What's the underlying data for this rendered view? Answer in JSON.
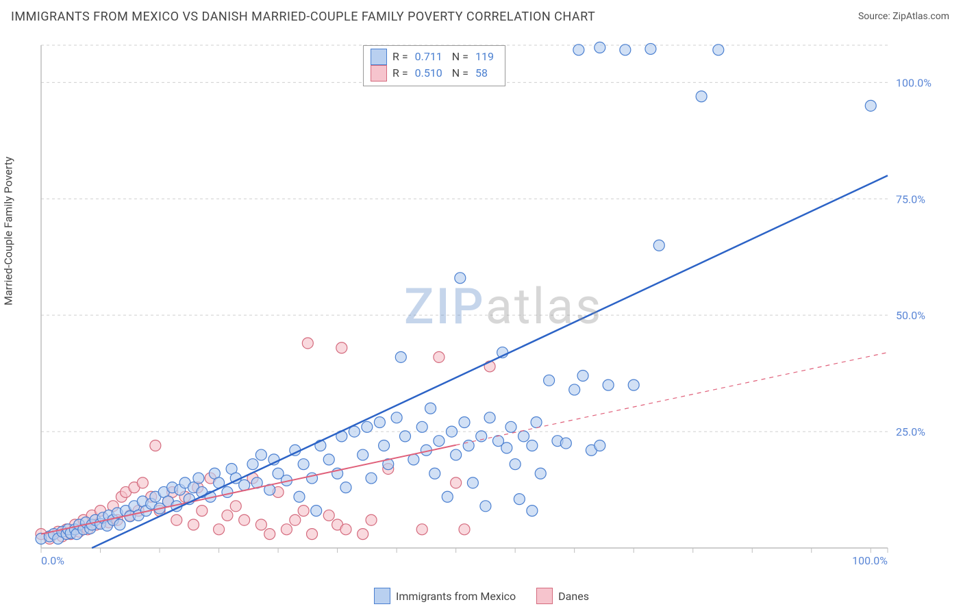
{
  "title": "IMMIGRANTS FROM MEXICO VS DANISH MARRIED-COUPLE FAMILY POVERTY CORRELATION CHART",
  "source_label": "Source:",
  "source_value": "ZipAtlas.com",
  "watermark_z": "ZIP",
  "watermark_rest": "atlas",
  "ylabel": "Married-Couple Family Poverty",
  "chart": {
    "type": "scatter",
    "xlim": [
      0,
      100
    ],
    "ylim": [
      0,
      108
    ],
    "xtick_labels": {
      "0": "0.0%",
      "100": "100.0%"
    },
    "ytick_labels": {
      "25": "25.0%",
      "50": "50.0%",
      "75": "75.0%",
      "100": "100.0%"
    },
    "grid_y": [
      25,
      50,
      75,
      100
    ],
    "x_ticks": [
      0,
      7,
      14,
      21,
      28,
      35,
      42,
      49,
      56,
      63,
      70,
      77,
      84,
      91,
      98,
      100
    ],
    "background_color": "#ffffff",
    "grid_color": "#cfcfcf",
    "axis_color": "#bdbdbd",
    "marker_radius": 8,
    "series": {
      "blue": {
        "label": "Immigrants from Mexico",
        "R": "0.711",
        "N": "119",
        "fill": "#b9d0f0",
        "stroke": "#4a7fd0",
        "fill_opacity": 0.65,
        "line_color": "#2c63c6",
        "line_width": 2.5,
        "line_dash": "none",
        "trend": {
          "x1": 6,
          "y1": 0,
          "x2": 100,
          "y2": 80
        },
        "points": [
          [
            0,
            2
          ],
          [
            1,
            2.5
          ],
          [
            1.5,
            3
          ],
          [
            2,
            2
          ],
          [
            2.5,
            3.5
          ],
          [
            3,
            3
          ],
          [
            3.2,
            4
          ],
          [
            3.5,
            3.2
          ],
          [
            4,
            4
          ],
          [
            4.2,
            3
          ],
          [
            4.5,
            5
          ],
          [
            5,
            4
          ],
          [
            5.3,
            5.5
          ],
          [
            5.8,
            4.2
          ],
          [
            6,
            5
          ],
          [
            6.4,
            6
          ],
          [
            7,
            5.2
          ],
          [
            7.3,
            6.5
          ],
          [
            7.8,
            4.8
          ],
          [
            8,
            7
          ],
          [
            8.5,
            6
          ],
          [
            9,
            7.5
          ],
          [
            9.3,
            5
          ],
          [
            10,
            8
          ],
          [
            10.5,
            6.8
          ],
          [
            11,
            9
          ],
          [
            11.5,
            7
          ],
          [
            12,
            10
          ],
          [
            12.4,
            8
          ],
          [
            13,
            9.5
          ],
          [
            13.5,
            11
          ],
          [
            14,
            8.5
          ],
          [
            14.5,
            12
          ],
          [
            15,
            10
          ],
          [
            15.5,
            13
          ],
          [
            16,
            9
          ],
          [
            16.4,
            12.5
          ],
          [
            17,
            14
          ],
          [
            17.5,
            10.5
          ],
          [
            18,
            13
          ],
          [
            18.6,
            15
          ],
          [
            19,
            12
          ],
          [
            20,
            11
          ],
          [
            20.5,
            16
          ],
          [
            21,
            14
          ],
          [
            22,
            12
          ],
          [
            22.5,
            17
          ],
          [
            23,
            15
          ],
          [
            24,
            13.5
          ],
          [
            25,
            18
          ],
          [
            25.5,
            14
          ],
          [
            26,
            20
          ],
          [
            27,
            12.5
          ],
          [
            27.5,
            19
          ],
          [
            28,
            16
          ],
          [
            29,
            14.5
          ],
          [
            30,
            21
          ],
          [
            30.5,
            11
          ],
          [
            31,
            18
          ],
          [
            32,
            15
          ],
          [
            32.5,
            8
          ],
          [
            33,
            22
          ],
          [
            34,
            19
          ],
          [
            35,
            16
          ],
          [
            35.5,
            24
          ],
          [
            36,
            13
          ],
          [
            37,
            25
          ],
          [
            38,
            20
          ],
          [
            38.5,
            26
          ],
          [
            39,
            15
          ],
          [
            40,
            27
          ],
          [
            40.5,
            22
          ],
          [
            41,
            18
          ],
          [
            42,
            28
          ],
          [
            42.5,
            41
          ],
          [
            43,
            24
          ],
          [
            44,
            19
          ],
          [
            45,
            26
          ],
          [
            45.5,
            21
          ],
          [
            46,
            30
          ],
          [
            46.5,
            16
          ],
          [
            47,
            23
          ],
          [
            48,
            11
          ],
          [
            48.5,
            25
          ],
          [
            49,
            20
          ],
          [
            49.5,
            58
          ],
          [
            50,
            27
          ],
          [
            50.5,
            22
          ],
          [
            51,
            14
          ],
          [
            52,
            24
          ],
          [
            52.5,
            9
          ],
          [
            53,
            28
          ],
          [
            54,
            23
          ],
          [
            54.5,
            42
          ],
          [
            55,
            21.5
          ],
          [
            55.5,
            26
          ],
          [
            56,
            18
          ],
          [
            56.5,
            10.5
          ],
          [
            57,
            24
          ],
          [
            58,
            22
          ],
          [
            58.5,
            27
          ],
          [
            59,
            16
          ],
          [
            60,
            36
          ],
          [
            61,
            23
          ],
          [
            62,
            22.5
          ],
          [
            63,
            34
          ],
          [
            64,
            37
          ],
          [
            65,
            21
          ],
          [
            66,
            22
          ],
          [
            67,
            35
          ],
          [
            70,
            35
          ],
          [
            73,
            65
          ],
          [
            78,
            97
          ],
          [
            63.5,
            107
          ],
          [
            66,
            107.5
          ],
          [
            69,
            107
          ],
          [
            80,
            107
          ],
          [
            72,
            107.2
          ],
          [
            98,
            95
          ],
          [
            58,
            8
          ]
        ]
      },
      "pink": {
        "label": "Danes",
        "R": "0.510",
        "N": "58",
        "fill": "#f6c4cd",
        "stroke": "#d46a7d",
        "fill_opacity": 0.65,
        "line_color": "#e0607a",
        "line_width": 2,
        "line_dash": "6 6",
        "trend_solid_end": 49,
        "trend": {
          "x1": 0,
          "y1": 3,
          "x2": 100,
          "y2": 42
        },
        "points": [
          [
            0,
            3
          ],
          [
            1,
            2
          ],
          [
            2,
            3.5
          ],
          [
            2.5,
            2.5
          ],
          [
            3,
            4
          ],
          [
            3.5,
            3
          ],
          [
            4,
            5
          ],
          [
            4.5,
            3.5
          ],
          [
            5,
            6
          ],
          [
            5.5,
            4
          ],
          [
            6,
            7
          ],
          [
            6.5,
            5
          ],
          [
            7,
            8
          ],
          [
            8,
            5.5
          ],
          [
            8.5,
            9
          ],
          [
            9,
            6
          ],
          [
            9.5,
            11
          ],
          [
            10,
            12
          ],
          [
            10.5,
            7
          ],
          [
            11,
            13
          ],
          [
            11.5,
            8
          ],
          [
            12,
            14
          ],
          [
            13,
            11
          ],
          [
            13.5,
            22
          ],
          [
            14,
            8
          ],
          [
            15,
            10
          ],
          [
            15.5,
            12
          ],
          [
            16,
            6
          ],
          [
            17,
            11
          ],
          [
            18,
            5
          ],
          [
            18.5,
            13
          ],
          [
            19,
            8
          ],
          [
            20,
            15
          ],
          [
            21,
            4
          ],
          [
            22,
            7
          ],
          [
            23,
            9
          ],
          [
            24,
            6
          ],
          [
            25,
            15
          ],
          [
            26,
            5
          ],
          [
            27,
            3
          ],
          [
            28,
            12
          ],
          [
            29,
            4
          ],
          [
            30,
            6
          ],
          [
            31,
            8
          ],
          [
            31.5,
            44
          ],
          [
            32,
            3
          ],
          [
            34,
            7
          ],
          [
            35,
            5
          ],
          [
            35.5,
            43
          ],
          [
            36,
            4
          ],
          [
            38,
            3
          ],
          [
            39,
            6
          ],
          [
            41,
            17
          ],
          [
            45,
            4
          ],
          [
            47,
            41
          ],
          [
            49,
            14
          ],
          [
            50,
            4
          ],
          [
            53,
            39
          ]
        ]
      }
    }
  },
  "stats_legend": {
    "rows": [
      {
        "color": "blue",
        "R_label": "R =",
        "R": "0.711",
        "N_label": "N =",
        "N": "119"
      },
      {
        "color": "pink",
        "R_label": "R =",
        "R": "0.510",
        "N_label": "N =",
        "N": "58"
      }
    ]
  }
}
